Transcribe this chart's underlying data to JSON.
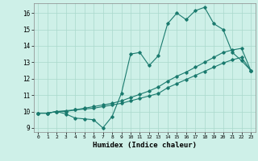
{
  "xlabel": "Humidex (Indice chaleur)",
  "background_color": "#cef0e8",
  "grid_color": "#aad8cc",
  "line_color": "#1a7a6e",
  "xlim": [
    -0.5,
    23.5
  ],
  "ylim": [
    8.75,
    16.6
  ],
  "xticks": [
    0,
    1,
    2,
    3,
    4,
    5,
    6,
    7,
    8,
    9,
    10,
    11,
    12,
    13,
    14,
    15,
    16,
    17,
    18,
    19,
    20,
    21,
    22,
    23
  ],
  "yticks": [
    9,
    10,
    11,
    12,
    13,
    14,
    15,
    16
  ],
  "line1_x": [
    0,
    1,
    2,
    3,
    4,
    5,
    6,
    7,
    8,
    9,
    10,
    11,
    12,
    13,
    14,
    15,
    16,
    17,
    18,
    19,
    20,
    21,
    22,
    23
  ],
  "line1_y": [
    9.9,
    9.9,
    10.0,
    9.85,
    9.6,
    9.55,
    9.5,
    9.0,
    9.7,
    11.1,
    13.5,
    13.6,
    12.8,
    13.4,
    15.35,
    16.0,
    15.6,
    16.15,
    16.35,
    15.35,
    15.0,
    13.6,
    13.1,
    12.5
  ],
  "line2_x": [
    0,
    1,
    2,
    3,
    4,
    5,
    6,
    7,
    8,
    9,
    10,
    11,
    12,
    13,
    14,
    15,
    16,
    17,
    18,
    19,
    20,
    21,
    22,
    23
  ],
  "line2_y": [
    9.9,
    9.9,
    10.0,
    10.0,
    10.1,
    10.15,
    10.2,
    10.3,
    10.4,
    10.5,
    10.65,
    10.8,
    10.95,
    11.1,
    11.45,
    11.7,
    11.95,
    12.2,
    12.45,
    12.7,
    12.95,
    13.15,
    13.3,
    12.5
  ],
  "line3_x": [
    0,
    1,
    2,
    3,
    4,
    5,
    6,
    7,
    8,
    9,
    10,
    11,
    12,
    13,
    14,
    15,
    16,
    17,
    18,
    19,
    20,
    21,
    22,
    23
  ],
  "line3_y": [
    9.9,
    9.9,
    10.0,
    10.05,
    10.1,
    10.2,
    10.3,
    10.4,
    10.5,
    10.65,
    10.85,
    11.05,
    11.25,
    11.5,
    11.85,
    12.15,
    12.4,
    12.7,
    13.0,
    13.3,
    13.6,
    13.75,
    13.85,
    12.5
  ]
}
